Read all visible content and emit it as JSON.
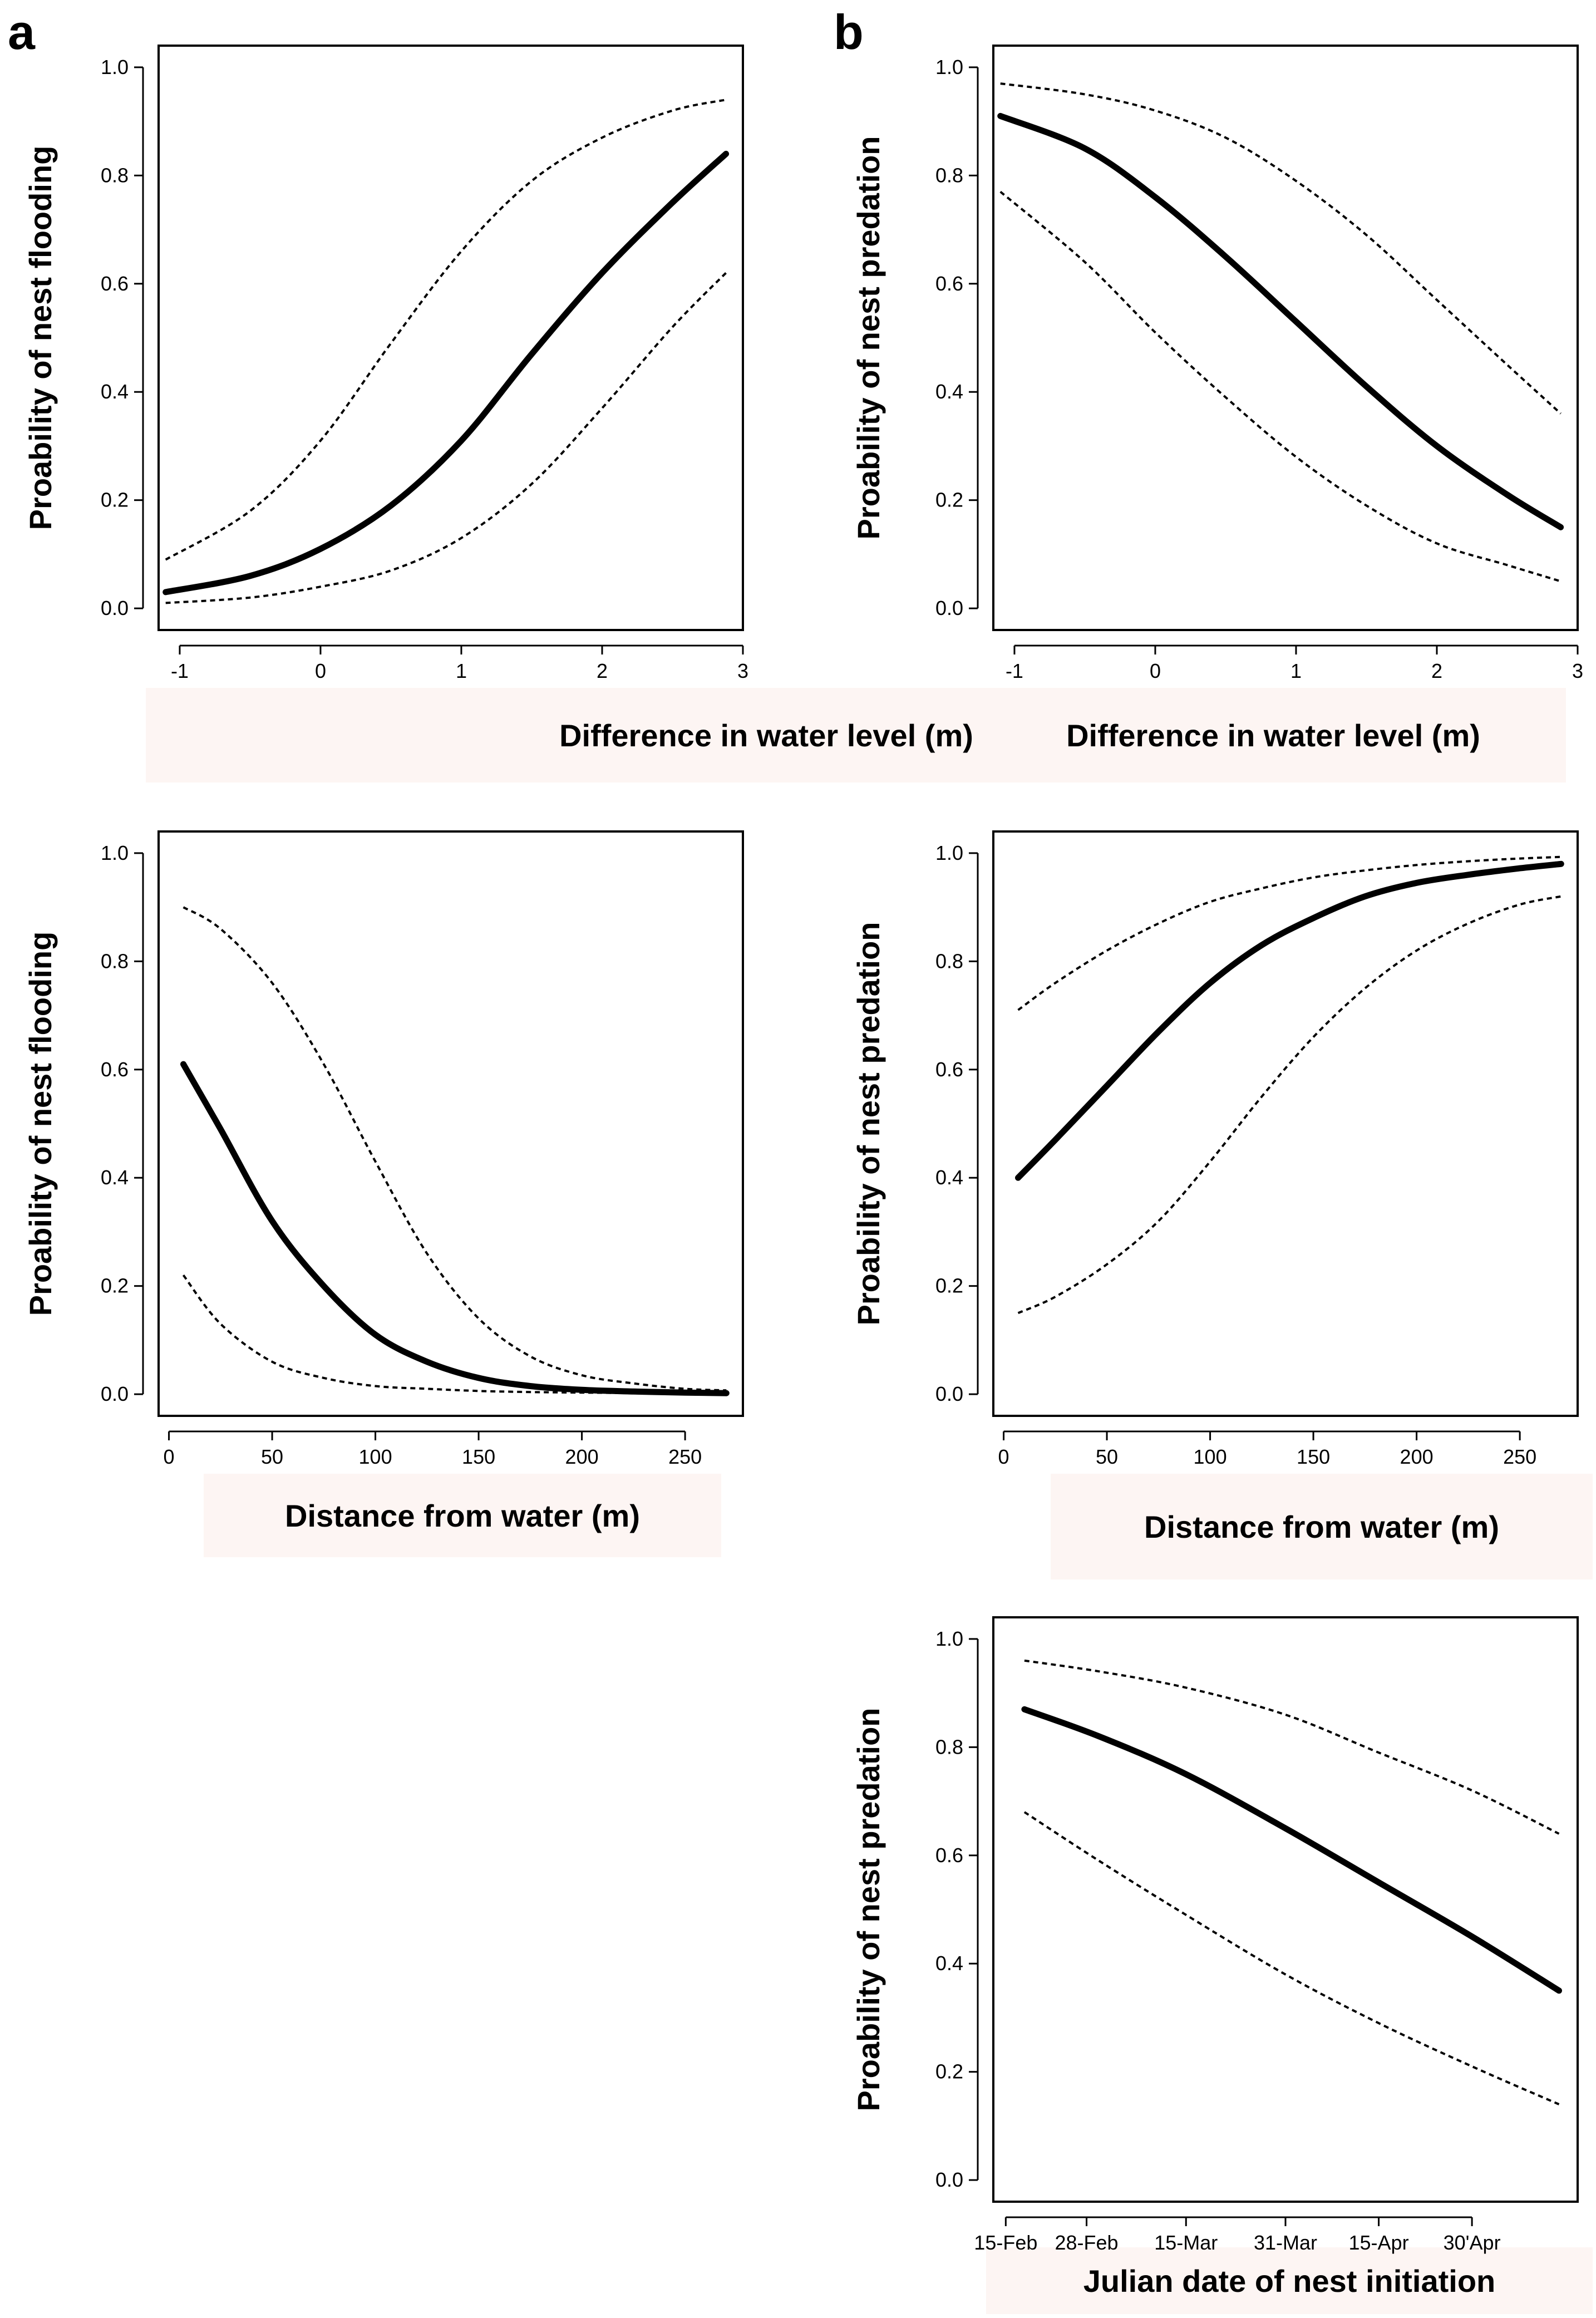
{
  "panel_labels": [
    "a",
    "b"
  ],
  "chart_data": [
    {
      "type": "line",
      "panel": "a",
      "xlabel": "Difference in water level (m)",
      "ylabel": "Proability of nest flooding",
      "x_type": "numeric",
      "xlim": [
        -1.15,
        3.0
      ],
      "ylim": [
        -0.04,
        1.04
      ],
      "xticks": [
        -1,
        0,
        1,
        2,
        3
      ],
      "xtick_labels": [
        "-1",
        "0",
        "1",
        "2",
        "3"
      ],
      "yticks": [
        0.0,
        0.2,
        0.4,
        0.6,
        0.8,
        1.0
      ],
      "ytick_labels": [
        "0.0",
        "0.2",
        "0.4",
        "0.6",
        "0.8",
        "1.0"
      ],
      "series": [
        {
          "role": "fit",
          "x": [
            -1.1,
            -0.5,
            0,
            0.5,
            1,
            1.5,
            2,
            2.5,
            2.88
          ],
          "y": [
            0.03,
            0.06,
            0.11,
            0.19,
            0.31,
            0.47,
            0.62,
            0.75,
            0.84
          ]
        },
        {
          "role": "ci_upper",
          "x": [
            -1.1,
            -0.5,
            0,
            0.5,
            1,
            1.5,
            2,
            2.5,
            2.88
          ],
          "y": [
            0.09,
            0.18,
            0.31,
            0.49,
            0.66,
            0.79,
            0.87,
            0.92,
            0.94
          ]
        },
        {
          "role": "ci_lower",
          "x": [
            -1.1,
            -0.5,
            0,
            0.5,
            1,
            1.5,
            2,
            2.5,
            2.88
          ],
          "y": [
            0.01,
            0.02,
            0.04,
            0.07,
            0.13,
            0.23,
            0.37,
            0.52,
            0.62
          ]
        }
      ]
    },
    {
      "type": "line",
      "panel": "b",
      "xlabel": "Difference in water level (m)",
      "ylabel": "Proability of nest predation",
      "x_type": "numeric",
      "xlim": [
        -1.15,
        3.0
      ],
      "ylim": [
        -0.04,
        1.04
      ],
      "xticks": [
        -1,
        0,
        1,
        2,
        3
      ],
      "xtick_labels": [
        "-1",
        "0",
        "1",
        "2",
        "3"
      ],
      "yticks": [
        0.0,
        0.2,
        0.4,
        0.6,
        0.8,
        1.0
      ],
      "ytick_labels": [
        "0.0",
        "0.2",
        "0.4",
        "0.6",
        "0.8",
        "1.0"
      ],
      "series": [
        {
          "role": "fit",
          "x": [
            -1.1,
            -0.5,
            0,
            0.5,
            1,
            1.5,
            2,
            2.5,
            2.88
          ],
          "y": [
            0.91,
            0.85,
            0.76,
            0.65,
            0.53,
            0.41,
            0.3,
            0.21,
            0.15
          ]
        },
        {
          "role": "ci_upper",
          "x": [
            -1.1,
            -0.5,
            0,
            0.5,
            1,
            1.5,
            2,
            2.5,
            2.88
          ],
          "y": [
            0.97,
            0.95,
            0.92,
            0.87,
            0.79,
            0.69,
            0.57,
            0.45,
            0.36
          ]
        },
        {
          "role": "ci_lower",
          "x": [
            -1.1,
            -0.5,
            0,
            0.5,
            1,
            1.5,
            2,
            2.5,
            2.88
          ],
          "y": [
            0.77,
            0.64,
            0.51,
            0.39,
            0.28,
            0.19,
            0.12,
            0.08,
            0.05
          ]
        }
      ]
    },
    {
      "type": "line",
      "panel": "a",
      "xlabel": "Distance from water (m)",
      "ylabel": "Proability of nest flooding",
      "x_type": "numeric",
      "xlim": [
        -5,
        278
      ],
      "ylim": [
        -0.04,
        1.04
      ],
      "xticks": [
        0,
        50,
        100,
        150,
        200,
        250
      ],
      "xtick_labels": [
        "0",
        "50",
        "100",
        "150",
        "200",
        "250"
      ],
      "yticks": [
        0.0,
        0.2,
        0.4,
        0.6,
        0.8,
        1.0
      ],
      "ytick_labels": [
        "0.0",
        "0.2",
        "0.4",
        "0.6",
        "0.8",
        "1.0"
      ],
      "series": [
        {
          "role": "fit",
          "x": [
            7,
            25,
            50,
            75,
            100,
            125,
            150,
            175,
            200,
            225,
            250,
            270
          ],
          "y": [
            0.61,
            0.49,
            0.32,
            0.2,
            0.11,
            0.06,
            0.03,
            0.015,
            0.008,
            0.005,
            0.003,
            0.002
          ]
        },
        {
          "role": "ci_upper",
          "x": [
            7,
            25,
            50,
            75,
            100,
            125,
            150,
            175,
            200,
            225,
            250,
            270
          ],
          "y": [
            0.9,
            0.86,
            0.76,
            0.61,
            0.43,
            0.26,
            0.14,
            0.07,
            0.035,
            0.02,
            0.01,
            0.007
          ]
        },
        {
          "role": "ci_lower",
          "x": [
            7,
            25,
            50,
            75,
            100,
            125,
            150,
            175,
            200,
            225,
            250,
            270
          ],
          "y": [
            0.22,
            0.13,
            0.06,
            0.03,
            0.015,
            0.01,
            0.006,
            0.004,
            0.003,
            0.002,
            0.001,
            0.001
          ]
        }
      ]
    },
    {
      "type": "line",
      "panel": "b",
      "xlabel": "Distance from water (m)",
      "ylabel": "Proability of nest predation",
      "x_type": "numeric",
      "xlim": [
        -5,
        278
      ],
      "ylim": [
        -0.04,
        1.04
      ],
      "xticks": [
        0,
        50,
        100,
        150,
        200,
        250
      ],
      "xtick_labels": [
        "0",
        "50",
        "100",
        "150",
        "200",
        "250"
      ],
      "yticks": [
        0.0,
        0.2,
        0.4,
        0.6,
        0.8,
        1.0
      ],
      "ytick_labels": [
        "0.0",
        "0.2",
        "0.4",
        "0.6",
        "0.8",
        "1.0"
      ],
      "series": [
        {
          "role": "fit",
          "x": [
            7,
            25,
            50,
            75,
            100,
            125,
            150,
            175,
            200,
            225,
            250,
            270
          ],
          "y": [
            0.4,
            0.47,
            0.57,
            0.67,
            0.76,
            0.83,
            0.88,
            0.92,
            0.945,
            0.96,
            0.972,
            0.98
          ]
        },
        {
          "role": "ci_upper",
          "x": [
            7,
            25,
            50,
            75,
            100,
            125,
            150,
            175,
            200,
            225,
            250,
            270
          ],
          "y": [
            0.71,
            0.76,
            0.82,
            0.87,
            0.91,
            0.935,
            0.955,
            0.968,
            0.978,
            0.985,
            0.99,
            0.993
          ]
        },
        {
          "role": "ci_lower",
          "x": [
            7,
            25,
            50,
            75,
            100,
            125,
            150,
            175,
            200,
            225,
            250,
            270
          ],
          "y": [
            0.15,
            0.18,
            0.24,
            0.32,
            0.43,
            0.55,
            0.66,
            0.75,
            0.82,
            0.87,
            0.905,
            0.92
          ]
        }
      ]
    },
    {
      "type": "line",
      "panel": "b",
      "xlabel": "Julian date of nest initiation",
      "ylabel": "Proability of nest predation",
      "x_type": "date",
      "xlim": [
        "2000-02-13",
        "2000-05-17"
      ],
      "ylim": [
        -0.04,
        1.04
      ],
      "xticks": [
        "2000-02-15",
        "2000-02-28",
        "2000-03-15",
        "2000-03-31",
        "2000-04-15",
        "2000-04-30"
      ],
      "xtick_labels": [
        "15-Feb",
        "28-Feb",
        "15-Mar",
        "31-Mar",
        "15-Apr",
        "30'Apr"
      ],
      "yticks": [
        0.0,
        0.2,
        0.4,
        0.6,
        0.8,
        1.0
      ],
      "ytick_labels": [
        "0.0",
        "0.2",
        "0.4",
        "0.6",
        "0.8",
        "1.0"
      ],
      "series": [
        {
          "role": "fit",
          "x": [
            "2000-02-18",
            "2000-03-01",
            "2000-03-15",
            "2000-03-31",
            "2000-04-15",
            "2000-04-30",
            "2000-05-14"
          ],
          "y": [
            0.87,
            0.82,
            0.75,
            0.65,
            0.55,
            0.45,
            0.35
          ]
        },
        {
          "role": "ci_upper",
          "x": [
            "2000-02-18",
            "2000-03-01",
            "2000-03-15",
            "2000-03-31",
            "2000-04-15",
            "2000-04-30",
            "2000-05-14"
          ],
          "y": [
            0.96,
            0.94,
            0.91,
            0.86,
            0.79,
            0.72,
            0.64
          ]
        },
        {
          "role": "ci_lower",
          "x": [
            "2000-02-18",
            "2000-03-01",
            "2000-03-15",
            "2000-03-31",
            "2000-04-15",
            "2000-04-30",
            "2000-05-14"
          ],
          "y": [
            0.68,
            0.59,
            0.49,
            0.38,
            0.29,
            0.21,
            0.14
          ]
        }
      ]
    }
  ]
}
